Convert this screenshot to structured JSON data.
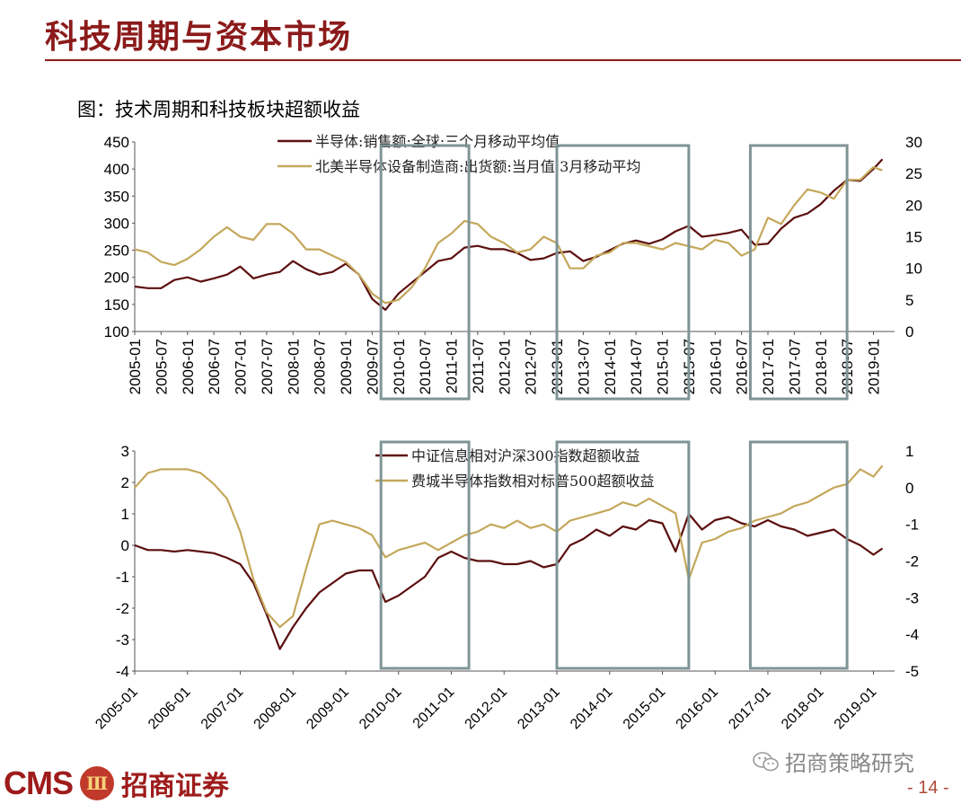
{
  "header": {
    "title": "科技周期与资本市场"
  },
  "figure": {
    "caption": "图：技术周期和科技板块超额收益"
  },
  "chart_data": [
    {
      "type": "line",
      "title": "",
      "x_tick_labels": [
        "2005-01",
        "2005-07",
        "2006-01",
        "2006-07",
        "2007-01",
        "2007-07",
        "2008-01",
        "2008-07",
        "2009-01",
        "2009-07",
        "2010-01",
        "2010-07",
        "2011-01",
        "2011-07",
        "2012-01",
        "2012-07",
        "2013-01",
        "2013-07",
        "2014-01",
        "2014-07",
        "2015-01",
        "2015-07",
        "2016-01",
        "2016-07",
        "2017-01",
        "2017-07",
        "2018-01",
        "2018-07",
        "2019-01"
      ],
      "y_left_ticks": [
        "450",
        "400",
        "350",
        "300",
        "250",
        "200",
        "150",
        "100"
      ],
      "y_right_ticks": [
        "30",
        "25",
        "20",
        "15",
        "10",
        "5",
        "0"
      ],
      "ylim_left": [
        100,
        450
      ],
      "ylim_right": [
        0,
        30
      ],
      "xlim": [
        2005.0,
        2019.4
      ],
      "legend_position": "top",
      "grid": false,
      "series": [
        {
          "name": "半导体:销售额:全球:三个月移动平均值",
          "axis": "left",
          "color": "#5c0f0f",
          "x": [
            2005.0,
            2005.25,
            2005.5,
            2005.75,
            2006.0,
            2006.25,
            2006.5,
            2006.75,
            2007.0,
            2007.25,
            2007.5,
            2007.75,
            2008.0,
            2008.25,
            2008.5,
            2008.75,
            2009.0,
            2009.25,
            2009.5,
            2009.75,
            2010.0,
            2010.25,
            2010.5,
            2010.75,
            2011.0,
            2011.25,
            2011.5,
            2011.75,
            2012.0,
            2012.25,
            2012.5,
            2012.75,
            2013.0,
            2013.25,
            2013.5,
            2013.75,
            2014.0,
            2014.25,
            2014.5,
            2014.75,
            2015.0,
            2015.25,
            2015.5,
            2015.75,
            2016.0,
            2016.25,
            2016.5,
            2016.75,
            2017.0,
            2017.25,
            2017.5,
            2017.75,
            2018.0,
            2018.25,
            2018.5,
            2018.75,
            2019.0,
            2019.17
          ],
          "y": [
            183,
            180,
            180,
            195,
            200,
            192,
            198,
            205,
            220,
            198,
            205,
            210,
            230,
            215,
            205,
            210,
            225,
            205,
            160,
            140,
            170,
            190,
            210,
            230,
            235,
            255,
            258,
            252,
            252,
            245,
            232,
            235,
            245,
            248,
            230,
            238,
            250,
            262,
            268,
            262,
            270,
            285,
            295,
            275,
            278,
            282,
            288,
            260,
            262,
            290,
            310,
            318,
            335,
            360,
            380,
            378,
            400,
            418
          ]
        },
        {
          "name": "北美半导体设备制造商:出货额:当月值:3月移动平均",
          "axis": "right",
          "color": "#c4a75a",
          "x": [
            2005.0,
            2005.25,
            2005.5,
            2005.75,
            2006.0,
            2006.25,
            2006.5,
            2006.75,
            2007.0,
            2007.25,
            2007.5,
            2007.75,
            2008.0,
            2008.25,
            2008.5,
            2008.75,
            2009.0,
            2009.25,
            2009.5,
            2009.75,
            2010.0,
            2010.25,
            2010.5,
            2010.75,
            2011.0,
            2011.25,
            2011.5,
            2011.75,
            2012.0,
            2012.25,
            2012.5,
            2012.75,
            2013.0,
            2013.25,
            2013.5,
            2013.75,
            2014.0,
            2014.25,
            2014.5,
            2014.75,
            2015.0,
            2015.25,
            2015.5,
            2015.75,
            2016.0,
            2016.25,
            2016.5,
            2016.75,
            2017.0,
            2017.25,
            2017.5,
            2017.75,
            2018.0,
            2018.25,
            2018.5,
            2018.75,
            2019.0,
            2019.17
          ],
          "y": [
            13,
            12.5,
            11,
            10.5,
            11.5,
            13,
            15,
            16.5,
            15,
            14.5,
            17,
            17,
            15.5,
            13,
            13,
            12,
            11,
            9,
            6,
            4.5,
            5,
            7,
            10,
            14,
            15.5,
            17.5,
            17,
            15,
            14,
            12.5,
            13,
            15,
            14,
            10,
            10,
            12,
            12.5,
            14,
            14,
            13.5,
            13,
            14,
            13.5,
            13,
            14.5,
            14,
            12,
            13,
            18,
            17,
            20,
            22.5,
            22,
            21,
            24,
            24,
            26,
            25.5
          ]
        }
      ],
      "highlights": [
        {
          "from": "2009-09",
          "to": "2011-05"
        },
        {
          "from": "2013-01",
          "to": "2015-07"
        },
        {
          "from": "2016-09",
          "to": "2018-07"
        }
      ]
    },
    {
      "type": "line",
      "title": "",
      "x_tick_labels": [
        "2005-01",
        "2006-01",
        "2007-01",
        "2008-01",
        "2009-01",
        "2010-01",
        "2011-01",
        "2012-01",
        "2013-01",
        "2014-01",
        "2015-01",
        "2016-01",
        "2017-01",
        "2018-01",
        "2019-01"
      ],
      "y_left_ticks": [
        "3",
        "2",
        "1",
        "0",
        "-1",
        "-2",
        "-3",
        "-4"
      ],
      "y_right_ticks": [
        "1",
        "0",
        "-1",
        "-2",
        "-3",
        "-4",
        "-5"
      ],
      "ylim_left": [
        -4,
        3
      ],
      "ylim_right": [
        -5,
        1
      ],
      "xlim": [
        2005.0,
        2019.4
      ],
      "legend_position": "top-center",
      "grid": false,
      "series": [
        {
          "name": "中证信息相对沪深300指数超额收益",
          "axis": "left",
          "color": "#5c0f0f",
          "x": [
            2005.0,
            2005.25,
            2005.5,
            2005.75,
            2006.0,
            2006.25,
            2006.5,
            2006.75,
            2007.0,
            2007.25,
            2007.5,
            2007.75,
            2008.0,
            2008.25,
            2008.5,
            2008.75,
            2009.0,
            2009.25,
            2009.5,
            2009.75,
            2010.0,
            2010.25,
            2010.5,
            2010.75,
            2011.0,
            2011.25,
            2011.5,
            2011.75,
            2012.0,
            2012.25,
            2012.5,
            2012.75,
            2013.0,
            2013.25,
            2013.5,
            2013.75,
            2014.0,
            2014.25,
            2014.5,
            2014.75,
            2015.0,
            2015.25,
            2015.5,
            2015.75,
            2016.0,
            2016.25,
            2016.5,
            2016.75,
            2017.0,
            2017.25,
            2017.5,
            2017.75,
            2018.0,
            2018.25,
            2018.5,
            2018.75,
            2019.0,
            2019.17
          ],
          "y": [
            0,
            -0.15,
            -0.15,
            -0.2,
            -0.15,
            -0.2,
            -0.25,
            -0.4,
            -0.6,
            -1.2,
            -2.2,
            -3.3,
            -2.6,
            -2.0,
            -1.5,
            -1.2,
            -0.9,
            -0.8,
            -0.8,
            -1.8,
            -1.6,
            -1.3,
            -1.0,
            -0.4,
            -0.2,
            -0.4,
            -0.5,
            -0.5,
            -0.6,
            -0.6,
            -0.5,
            -0.7,
            -0.6,
            0.0,
            0.2,
            0.5,
            0.3,
            0.6,
            0.5,
            0.8,
            0.7,
            -0.2,
            1.0,
            0.5,
            0.8,
            0.9,
            0.7,
            0.6,
            0.8,
            0.6,
            0.5,
            0.3,
            0.4,
            0.5,
            0.2,
            0.0,
            -0.3,
            -0.1
          ]
        },
        {
          "name": "费城半导体指数相对标普500超额收益",
          "axis": "right",
          "color": "#c4a75a",
          "x": [
            2005.0,
            2005.25,
            2005.5,
            2005.75,
            2006.0,
            2006.25,
            2006.5,
            2006.75,
            2007.0,
            2007.25,
            2007.5,
            2007.75,
            2008.0,
            2008.25,
            2008.5,
            2008.75,
            2009.0,
            2009.25,
            2009.5,
            2009.75,
            2010.0,
            2010.25,
            2010.5,
            2010.75,
            2011.0,
            2011.25,
            2011.5,
            2011.75,
            2012.0,
            2012.25,
            2012.5,
            2012.75,
            2013.0,
            2013.25,
            2013.5,
            2013.75,
            2014.0,
            2014.25,
            2014.5,
            2014.75,
            2015.0,
            2015.25,
            2015.5,
            2015.75,
            2016.0,
            2016.25,
            2016.5,
            2016.75,
            2017.0,
            2017.25,
            2017.5,
            2017.75,
            2018.0,
            2018.25,
            2018.5,
            2018.75,
            2019.0,
            2019.17
          ],
          "y": [
            0.0,
            0.4,
            0.5,
            0.5,
            0.5,
            0.4,
            0.1,
            -0.3,
            -1.2,
            -2.5,
            -3.4,
            -3.8,
            -3.5,
            -2.2,
            -1.0,
            -0.9,
            -1.0,
            -1.1,
            -1.3,
            -1.9,
            -1.7,
            -1.6,
            -1.5,
            -1.7,
            -1.5,
            -1.3,
            -1.2,
            -1.0,
            -1.1,
            -0.9,
            -1.1,
            -1.0,
            -1.2,
            -0.9,
            -0.8,
            -0.7,
            -0.6,
            -0.4,
            -0.5,
            -0.3,
            -0.5,
            -0.7,
            -2.5,
            -1.5,
            -1.4,
            -1.2,
            -1.1,
            -0.9,
            -0.8,
            -0.7,
            -0.5,
            -0.4,
            -0.2,
            0.0,
            0.1,
            0.5,
            0.3,
            0.6
          ]
        }
      ],
      "highlights": [
        {
          "from": "2009-09",
          "to": "2011-05"
        },
        {
          "from": "2013-01",
          "to": "2015-07"
        },
        {
          "from": "2016-09",
          "to": "2018-07"
        }
      ]
    }
  ],
  "footer": {
    "brand_en": "CMS",
    "brand_mark": "Ⅲ",
    "brand_cn": "招商证券",
    "wechat_account": "招商策略研究",
    "page_number": "- 14 -"
  },
  "colors": {
    "brand": "#8b1a1a",
    "highlight_box": "#7f9495"
  }
}
